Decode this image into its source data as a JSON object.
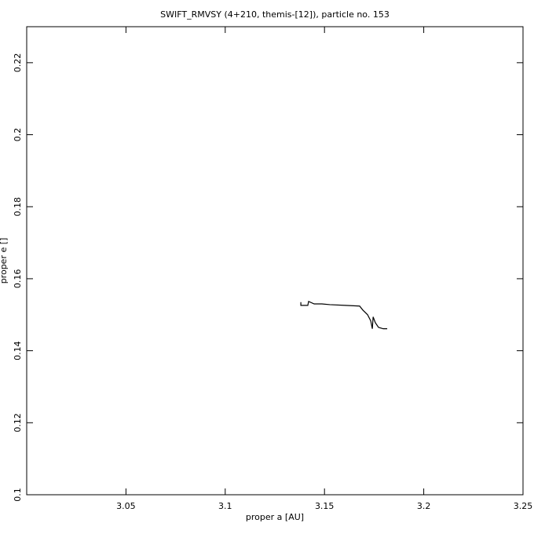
{
  "chart_data": {
    "type": "line",
    "title": "SWIFT_RMVSY (4+210, themis-[12]), particle no. 153",
    "x_label": "proper a [AU]",
    "y_label": "proper e []",
    "xlim": [
      3.0,
      3.25
    ],
    "xticks": [
      3.05,
      3.1,
      3.15,
      3.2,
      3.25
    ],
    "ylim": [
      0.1,
      0.23
    ],
    "yticks": [
      0.1,
      0.12,
      0.14,
      0.16,
      0.18,
      0.2,
      0.22
    ],
    "grid": false,
    "series": [
      {
        "color": "#000000",
        "x": [
          3.1381,
          3.1381,
          3.1416,
          3.142,
          3.1448,
          3.1487,
          3.1527,
          3.1606,
          3.1677,
          3.1693,
          3.1717,
          3.1733,
          3.1741,
          3.1745,
          3.1756,
          3.1772,
          3.1796,
          3.1816
        ],
        "values": [
          0.1535,
          0.1526,
          0.1526,
          0.1537,
          0.153,
          0.153,
          0.1528,
          0.1526,
          0.1524,
          0.1513,
          0.15,
          0.1483,
          0.1461,
          0.1494,
          0.1478,
          0.1465,
          0.1461,
          0.1461
        ]
      }
    ]
  }
}
